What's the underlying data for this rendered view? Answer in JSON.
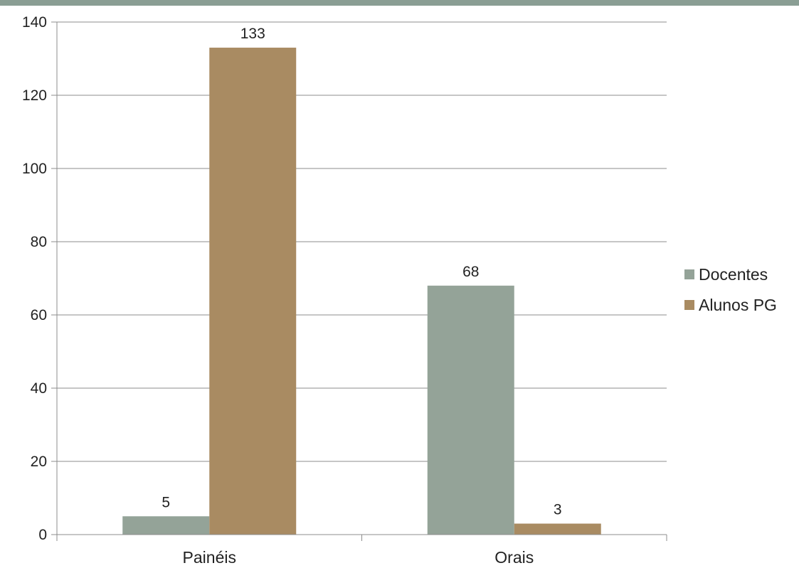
{
  "theme": {
    "top_bar_color": "#8a9e94"
  },
  "chart_data": {
    "type": "bar",
    "categories": [
      "Painéis",
      "Orais"
    ],
    "series": [
      {
        "name": "Docentes",
        "values": [
          5,
          68
        ],
        "color": "#94a398"
      },
      {
        "name": "Alunos PG",
        "values": [
          133,
          3
        ],
        "color": "#a98b62"
      }
    ],
    "ylim": [
      0,
      140
    ],
    "yticks": [
      0,
      20,
      40,
      60,
      80,
      100,
      120,
      140
    ],
    "grid": true,
    "legend_position": "right",
    "data_labels": true
  }
}
